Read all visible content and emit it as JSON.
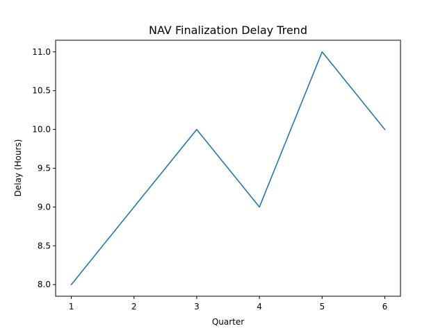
{
  "chart_data": {
    "type": "line",
    "title": "NAV Finalization Delay Trend",
    "xlabel": "Quarter",
    "ylabel": "Delay (Hours)",
    "x": [
      1,
      2,
      3,
      4,
      5,
      6
    ],
    "series": [
      {
        "values": [
          8.0,
          9.0,
          10.0,
          9.0,
          11.0,
          10.0
        ],
        "color": "#1f77b4"
      }
    ],
    "xlim": [
      0.75,
      6.25
    ],
    "ylim": [
      7.85,
      11.15
    ],
    "xticks": [
      1,
      2,
      3,
      4,
      5,
      6
    ],
    "xtick_labels": [
      "1",
      "2",
      "3",
      "4",
      "5",
      "6"
    ],
    "yticks": [
      8.0,
      8.5,
      9.0,
      9.5,
      10.0,
      10.5,
      11.0
    ],
    "ytick_labels": [
      "8.0",
      "8.5",
      "9.0",
      "9.5",
      "10.0",
      "10.5",
      "11.0"
    ],
    "grid": false,
    "legend": "none"
  }
}
